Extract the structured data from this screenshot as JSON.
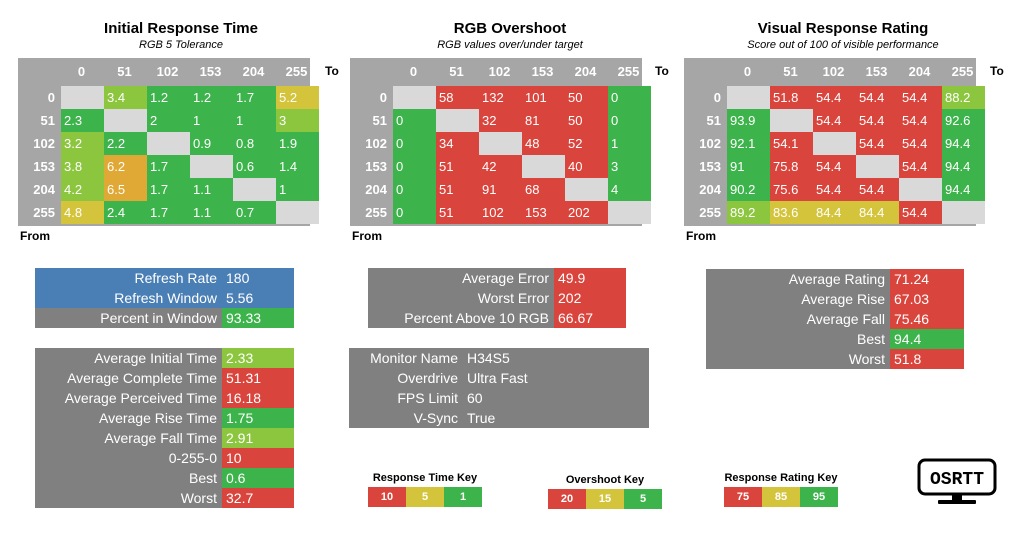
{
  "colors": {
    "green": "#3cb44b",
    "lightgreen": "#8cc63f",
    "yellow": "#d4c43b",
    "orange": "#e0a834",
    "red": "#d9443c",
    "blue": "#4a7fb5",
    "gray": "#808080",
    "header": "#a6a6a6",
    "empty": "#d9d9d9"
  },
  "axis_headers": [
    "0",
    "51",
    "102",
    "153",
    "204",
    "255"
  ],
  "axis_to": "To",
  "axis_from": "From",
  "panels": [
    {
      "title": "Initial Response Time",
      "subtitle": "RGB 5 Tolerance",
      "rows": [
        [
          [
            "",
            "empty"
          ],
          [
            "3.4",
            "lightgreen"
          ],
          [
            "1.2",
            "green"
          ],
          [
            "1.2",
            "green"
          ],
          [
            "1.7",
            "green"
          ],
          [
            "5.2",
            "yellow"
          ]
        ],
        [
          [
            "2.3",
            "green"
          ],
          [
            "",
            "empty"
          ],
          [
            "2",
            "green"
          ],
          [
            "1",
            "green"
          ],
          [
            "1",
            "green"
          ],
          [
            "3",
            "lightgreen"
          ]
        ],
        [
          [
            "3.2",
            "lightgreen"
          ],
          [
            "2.2",
            "green"
          ],
          [
            "",
            "empty"
          ],
          [
            "0.9",
            "green"
          ],
          [
            "0.8",
            "green"
          ],
          [
            "1.9",
            "green"
          ]
        ],
        [
          [
            "3.8",
            "lightgreen"
          ],
          [
            "6.2",
            "orange"
          ],
          [
            "1.7",
            "green"
          ],
          [
            "",
            "empty"
          ],
          [
            "0.6",
            "green"
          ],
          [
            "1.4",
            "green"
          ]
        ],
        [
          [
            "4.2",
            "lightgreen"
          ],
          [
            "6.5",
            "orange"
          ],
          [
            "1.7",
            "green"
          ],
          [
            "1.1",
            "green"
          ],
          [
            "",
            "empty"
          ],
          [
            "1",
            "green"
          ]
        ],
        [
          [
            "4.8",
            "yellow"
          ],
          [
            "2.4",
            "green"
          ],
          [
            "1.7",
            "green"
          ],
          [
            "1.1",
            "green"
          ],
          [
            "0.7",
            "green"
          ],
          [
            "",
            "empty"
          ]
        ]
      ]
    },
    {
      "title": "RGB Overshoot",
      "subtitle": "RGB values over/under target",
      "rows": [
        [
          [
            "",
            "empty"
          ],
          [
            "58",
            "red"
          ],
          [
            "132",
            "red"
          ],
          [
            "101",
            "red"
          ],
          [
            "50",
            "red"
          ],
          [
            "0",
            "green"
          ]
        ],
        [
          [
            "0",
            "green"
          ],
          [
            "",
            "empty"
          ],
          [
            "32",
            "red"
          ],
          [
            "81",
            "red"
          ],
          [
            "50",
            "red"
          ],
          [
            "0",
            "green"
          ]
        ],
        [
          [
            "0",
            "green"
          ],
          [
            "34",
            "red"
          ],
          [
            "",
            "empty"
          ],
          [
            "48",
            "red"
          ],
          [
            "52",
            "red"
          ],
          [
            "1",
            "green"
          ]
        ],
        [
          [
            "0",
            "green"
          ],
          [
            "51",
            "red"
          ],
          [
            "42",
            "red"
          ],
          [
            "",
            "empty"
          ],
          [
            "40",
            "red"
          ],
          [
            "3",
            "green"
          ]
        ],
        [
          [
            "0",
            "green"
          ],
          [
            "51",
            "red"
          ],
          [
            "91",
            "red"
          ],
          [
            "68",
            "red"
          ],
          [
            "",
            "empty"
          ],
          [
            "4",
            "green"
          ]
        ],
        [
          [
            "0",
            "green"
          ],
          [
            "51",
            "red"
          ],
          [
            "102",
            "red"
          ],
          [
            "153",
            "red"
          ],
          [
            "202",
            "red"
          ],
          [
            "",
            "empty"
          ]
        ]
      ]
    },
    {
      "title": "Visual Response Rating",
      "subtitle": "Score out of 100 of visible performance",
      "rows": [
        [
          [
            "",
            "empty"
          ],
          [
            "51.8",
            "red"
          ],
          [
            "54.4",
            "red"
          ],
          [
            "54.4",
            "red"
          ],
          [
            "54.4",
            "red"
          ],
          [
            "88.2",
            "lightgreen"
          ]
        ],
        [
          [
            "93.9",
            "green"
          ],
          [
            "",
            "empty"
          ],
          [
            "54.4",
            "red"
          ],
          [
            "54.4",
            "red"
          ],
          [
            "54.4",
            "red"
          ],
          [
            "92.6",
            "green"
          ]
        ],
        [
          [
            "92.1",
            "green"
          ],
          [
            "54.1",
            "red"
          ],
          [
            "",
            "empty"
          ],
          [
            "54.4",
            "red"
          ],
          [
            "54.4",
            "red"
          ],
          [
            "94.4",
            "green"
          ]
        ],
        [
          [
            "91",
            "green"
          ],
          [
            "75.8",
            "red"
          ],
          [
            "54.4",
            "red"
          ],
          [
            "",
            "empty"
          ],
          [
            "54.4",
            "red"
          ],
          [
            "94.4",
            "green"
          ]
        ],
        [
          [
            "90.2",
            "green"
          ],
          [
            "75.6",
            "red"
          ],
          [
            "54.4",
            "red"
          ],
          [
            "54.4",
            "red"
          ],
          [
            "",
            "empty"
          ],
          [
            "94.4",
            "green"
          ]
        ],
        [
          [
            "89.2",
            "lightgreen"
          ],
          [
            "83.6",
            "yellow"
          ],
          [
            "84.4",
            "yellow"
          ],
          [
            "84.4",
            "yellow"
          ],
          [
            "54.4",
            "red"
          ],
          [
            "",
            "empty"
          ]
        ]
      ]
    }
  ],
  "refresh": [
    {
      "label": "Refresh Rate",
      "value": "180",
      "key_color": "blue",
      "val_color": "blue"
    },
    {
      "label": "Refresh Window",
      "value": "5.56",
      "key_color": "blue",
      "val_color": "blue"
    },
    {
      "label": "Percent in Window",
      "value": "93.33",
      "key_color": "gray",
      "val_color": "green"
    }
  ],
  "timings": [
    {
      "label": "Average Initial Time",
      "value": "2.33",
      "val_color": "lightgreen"
    },
    {
      "label": "Average Complete Time",
      "value": "51.31",
      "val_color": "red"
    },
    {
      "label": "Average Perceived Time",
      "value": "16.18",
      "val_color": "red"
    },
    {
      "label": "Average Rise Time",
      "value": "1.75",
      "val_color": "green"
    },
    {
      "label": "Average Fall Time",
      "value": "2.91",
      "val_color": "lightgreen"
    },
    {
      "label": "0-255-0",
      "value": "10",
      "val_color": "red"
    },
    {
      "label": "Best",
      "value": "0.6",
      "val_color": "green"
    },
    {
      "label": "Worst",
      "value": "32.7",
      "val_color": "red"
    }
  ],
  "overshoot_stats": [
    {
      "label": "Average Error",
      "value": "49.9",
      "val_color": "red"
    },
    {
      "label": "Worst Error",
      "value": "202",
      "val_color": "red"
    },
    {
      "label": "Percent Above 10 RGB",
      "value": "66.67",
      "val_color": "red"
    }
  ],
  "monitor": [
    {
      "label": "Monitor Name",
      "value": "H34S5"
    },
    {
      "label": "Overdrive",
      "value": "Ultra Fast"
    },
    {
      "label": "FPS Limit",
      "value": "60"
    },
    {
      "label": "V-Sync",
      "value": "True"
    }
  ],
  "rating_stats": [
    {
      "label": "Average Rating",
      "value": "71.24",
      "val_color": "red"
    },
    {
      "label": "Average Rise",
      "value": "67.03",
      "val_color": "red"
    },
    {
      "label": "Average Fall",
      "value": "75.46",
      "val_color": "red"
    },
    {
      "label": "Best",
      "value": "94.4",
      "val_color": "green"
    },
    {
      "label": "Worst",
      "value": "51.8",
      "val_color": "red"
    }
  ],
  "keys": [
    {
      "title": "Response Time Key",
      "cells": [
        [
          "10",
          "red"
        ],
        [
          "5",
          "yellow"
        ],
        [
          "1",
          "green"
        ]
      ]
    },
    {
      "title": "Overshoot Key",
      "cells": [
        [
          "20",
          "red"
        ],
        [
          "15",
          "yellow"
        ],
        [
          "5",
          "green"
        ]
      ]
    },
    {
      "title": "Response Rating Key",
      "cells": [
        [
          "75",
          "red"
        ],
        [
          "85",
          "yellow"
        ],
        [
          "95",
          "green"
        ]
      ]
    }
  ],
  "logo_text": "OSRTT"
}
